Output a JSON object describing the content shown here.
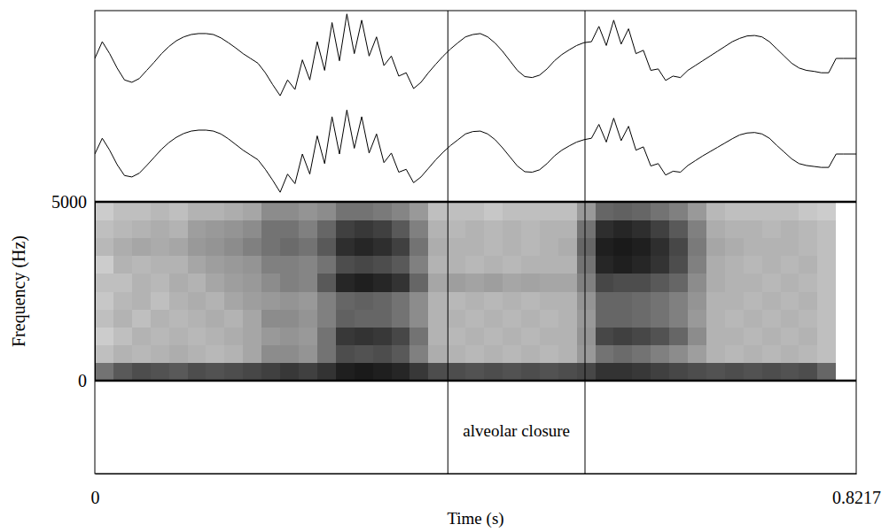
{
  "chart_data": {
    "type": "spectrogram",
    "xlabel": "Time (s)",
    "ylabel": "Frequency (Hz)",
    "xlim": [
      0,
      0.8217
    ],
    "xticks": [
      0,
      0.8217
    ],
    "ylim": [
      0,
      5000
    ],
    "yticks": [
      0,
      5000
    ],
    "waveform": {
      "amplitude_lim": [
        -1,
        1
      ],
      "x": [
        0,
        0.008,
        0.016,
        0.024,
        0.032,
        0.04,
        0.048,
        0.056,
        0.064,
        0.072,
        0.08,
        0.088,
        0.096,
        0.104,
        0.112,
        0.12,
        0.128,
        0.136,
        0.144,
        0.152,
        0.16,
        0.168,
        0.176,
        0.184,
        0.192,
        0.2,
        0.208,
        0.216,
        0.224,
        0.232,
        0.24,
        0.248,
        0.256,
        0.264,
        0.272,
        0.28,
        0.288,
        0.296,
        0.304,
        0.312,
        0.32,
        0.328,
        0.336,
        0.344,
        0.352,
        0.36,
        0.368,
        0.376,
        0.384,
        0.392,
        0.4,
        0.408,
        0.416,
        0.424,
        0.432,
        0.44,
        0.448,
        0.456,
        0.464,
        0.472,
        0.48,
        0.488,
        0.496,
        0.504,
        0.512,
        0.52,
        0.528,
        0.536,
        0.544,
        0.552,
        0.56,
        0.568,
        0.576,
        0.584,
        0.592,
        0.6,
        0.608,
        0.616,
        0.624,
        0.632,
        0.64,
        0.648,
        0.656,
        0.664,
        0.672,
        0.68,
        0.688,
        0.696,
        0.704,
        0.712,
        0.72,
        0.728,
        0.736,
        0.744,
        0.752,
        0.76,
        0.768,
        0.776,
        0.784,
        0.792,
        0.8,
        0.808,
        0.816,
        0.8217
      ],
      "channels": [
        [
          0,
          0.35,
          0.1,
          -0.2,
          -0.45,
          -0.5,
          -0.42,
          -0.25,
          -0.08,
          0.1,
          0.25,
          0.37,
          0.45,
          0.5,
          0.52,
          0.52,
          0.5,
          0.43,
          0.33,
          0.22,
          0.1,
          0,
          -0.1,
          -0.3,
          -0.55,
          -0.78,
          -0.45,
          -0.65,
          -0.03,
          -0.45,
          0.35,
          -0.25,
          0.75,
          -0.05,
          0.93,
          0.1,
          0.8,
          0.05,
          0.45,
          -0.15,
          0.05,
          -0.37,
          -0.3,
          -0.63,
          -0.5,
          -0.3,
          -0.12,
          0.05,
          0.2,
          0.33,
          0.45,
          0.5,
          0.52,
          0.45,
          0.32,
          0.15,
          -0.05,
          -0.25,
          -0.38,
          -0.4,
          -0.35,
          -0.22,
          -0.05,
          0.08,
          0.18,
          0.27,
          0.33,
          0.35,
          0.67,
          0.27,
          0.8,
          0.3,
          0.62,
          0.1,
          0.17,
          -0.25,
          -0.22,
          -0.46,
          -0.37,
          -0.4,
          -0.25,
          -0.15,
          -0.05,
          0.05,
          0.15,
          0.25,
          0.35,
          0.42,
          0.47,
          0.48,
          0.45,
          0.35,
          0.2,
          0.05,
          -0.1,
          -0.2,
          -0.25,
          -0.27,
          -0.3,
          -0.3,
          0,
          0,
          0,
          0
        ],
        [
          0,
          0.33,
          0.08,
          -0.22,
          -0.45,
          -0.48,
          -0.4,
          -0.24,
          -0.07,
          0.1,
          0.24,
          0.35,
          0.43,
          0.48,
          0.5,
          0.5,
          0.48,
          0.42,
          0.32,
          0.2,
          0.08,
          -0.02,
          -0.12,
          -0.32,
          -0.55,
          -0.8,
          -0.42,
          -0.62,
          0,
          -0.42,
          0.38,
          -0.2,
          0.78,
          0,
          0.92,
          0.12,
          0.78,
          0.02,
          0.42,
          -0.18,
          0.02,
          -0.38,
          -0.32,
          -0.6,
          -0.48,
          -0.3,
          -0.12,
          0.04,
          0.18,
          0.3,
          0.42,
          0.47,
          0.48,
          0.42,
          0.3,
          0.13,
          -0.06,
          -0.25,
          -0.37,
          -0.38,
          -0.33,
          -0.2,
          -0.04,
          0.08,
          0.17,
          0.25,
          0.3,
          0.33,
          0.62,
          0.25,
          0.75,
          0.28,
          0.58,
          0.08,
          0.15,
          -0.25,
          -0.2,
          -0.44,
          -0.36,
          -0.38,
          -0.24,
          -0.14,
          -0.04,
          0.05,
          0.14,
          0.23,
          0.32,
          0.4,
          0.44,
          0.45,
          0.42,
          0.33,
          0.18,
          0.04,
          -0.1,
          -0.2,
          -0.24,
          -0.26,
          -0.28,
          -0.28,
          0,
          0,
          0,
          0
        ]
      ]
    },
    "cells": {
      "zlim": [
        0,
        1
      ],
      "x": [
        0,
        0.02,
        0.04,
        0.06,
        0.08,
        0.1,
        0.12,
        0.14,
        0.16,
        0.18,
        0.2,
        0.22,
        0.24,
        0.26,
        0.28,
        0.3,
        0.32,
        0.34,
        0.36,
        0.38,
        0.4,
        0.42,
        0.44,
        0.46,
        0.48,
        0.5,
        0.52,
        0.54,
        0.56,
        0.58,
        0.6,
        0.62,
        0.64,
        0.66,
        0.68,
        0.7,
        0.72,
        0.74,
        0.76,
        0.78,
        0.8,
        0.82
      ],
      "y": [
        0,
        500,
        1000,
        1500,
        2000,
        2500,
        3000,
        3500,
        4000,
        4500,
        5000
      ],
      "values": [
        [
          0.55,
          0.25,
          0.2,
          0.25,
          0.22,
          0.25,
          0.2,
          0.28,
          0.25,
          0.2
        ],
        [
          0.65,
          0.3,
          0.25,
          0.3,
          0.28,
          0.25,
          0.3,
          0.32,
          0.28,
          0.25
        ],
        [
          0.7,
          0.28,
          0.3,
          0.25,
          0.3,
          0.3,
          0.28,
          0.35,
          0.3,
          0.25
        ],
        [
          0.68,
          0.3,
          0.28,
          0.3,
          0.25,
          0.28,
          0.3,
          0.33,
          0.32,
          0.28
        ],
        [
          0.65,
          0.32,
          0.3,
          0.28,
          0.3,
          0.32,
          0.3,
          0.35,
          0.3,
          0.25
        ],
        [
          0.7,
          0.3,
          0.28,
          0.3,
          0.32,
          0.3,
          0.35,
          0.4,
          0.38,
          0.3
        ],
        [
          0.68,
          0.28,
          0.3,
          0.32,
          0.3,
          0.35,
          0.38,
          0.42,
          0.4,
          0.3
        ],
        [
          0.7,
          0.3,
          0.32,
          0.3,
          0.35,
          0.38,
          0.4,
          0.45,
          0.42,
          0.32
        ],
        [
          0.72,
          0.35,
          0.35,
          0.35,
          0.38,
          0.4,
          0.42,
          0.5,
          0.45,
          0.35
        ],
        [
          0.75,
          0.45,
          0.4,
          0.45,
          0.4,
          0.45,
          0.5,
          0.55,
          0.55,
          0.45
        ],
        [
          0.78,
          0.45,
          0.42,
          0.45,
          0.42,
          0.5,
          0.5,
          0.58,
          0.55,
          0.45
        ],
        [
          0.75,
          0.42,
          0.4,
          0.42,
          0.4,
          0.48,
          0.48,
          0.55,
          0.5,
          0.42
        ],
        [
          0.8,
          0.55,
          0.55,
          0.5,
          0.5,
          0.65,
          0.55,
          0.65,
          0.6,
          0.45
        ],
        [
          0.88,
          0.7,
          0.78,
          0.62,
          0.6,
          0.85,
          0.7,
          0.82,
          0.75,
          0.55
        ],
        [
          0.9,
          0.68,
          0.8,
          0.6,
          0.62,
          0.88,
          0.72,
          0.85,
          0.78,
          0.55
        ],
        [
          0.88,
          0.7,
          0.78,
          0.6,
          0.6,
          0.85,
          0.7,
          0.82,
          0.75,
          0.52
        ],
        [
          0.85,
          0.65,
          0.72,
          0.55,
          0.55,
          0.8,
          0.65,
          0.75,
          0.65,
          0.48
        ],
        [
          0.78,
          0.5,
          0.55,
          0.45,
          0.45,
          0.6,
          0.5,
          0.55,
          0.5,
          0.4
        ],
        [
          0.7,
          0.32,
          0.3,
          0.3,
          0.3,
          0.35,
          0.3,
          0.32,
          0.3,
          0.25
        ],
        [
          0.7,
          0.3,
          0.28,
          0.3,
          0.28,
          0.38,
          0.3,
          0.3,
          0.28,
          0.25
        ],
        [
          0.68,
          0.28,
          0.3,
          0.28,
          0.3,
          0.36,
          0.28,
          0.3,
          0.3,
          0.25
        ],
        [
          0.7,
          0.3,
          0.28,
          0.3,
          0.28,
          0.38,
          0.3,
          0.28,
          0.28,
          0.22
        ],
        [
          0.68,
          0.28,
          0.3,
          0.28,
          0.3,
          0.35,
          0.28,
          0.3,
          0.3,
          0.25
        ],
        [
          0.7,
          0.3,
          0.28,
          0.3,
          0.28,
          0.36,
          0.3,
          0.28,
          0.28,
          0.25
        ],
        [
          0.68,
          0.28,
          0.3,
          0.28,
          0.3,
          0.35,
          0.3,
          0.3,
          0.3,
          0.25
        ],
        [
          0.7,
          0.3,
          0.3,
          0.3,
          0.3,
          0.35,
          0.3,
          0.32,
          0.3,
          0.25
        ],
        [
          0.72,
          0.4,
          0.42,
          0.4,
          0.42,
          0.5,
          0.55,
          0.6,
          0.55,
          0.4
        ],
        [
          0.8,
          0.55,
          0.72,
          0.6,
          0.6,
          0.72,
          0.85,
          0.88,
          0.82,
          0.6
        ],
        [
          0.8,
          0.58,
          0.75,
          0.6,
          0.6,
          0.7,
          0.88,
          0.9,
          0.85,
          0.62
        ],
        [
          0.78,
          0.55,
          0.72,
          0.58,
          0.58,
          0.7,
          0.85,
          0.88,
          0.82,
          0.6
        ],
        [
          0.75,
          0.5,
          0.68,
          0.55,
          0.55,
          0.65,
          0.8,
          0.82,
          0.75,
          0.55
        ],
        [
          0.72,
          0.45,
          0.6,
          0.5,
          0.5,
          0.6,
          0.7,
          0.72,
          0.65,
          0.5
        ],
        [
          0.7,
          0.38,
          0.45,
          0.4,
          0.42,
          0.45,
          0.5,
          0.52,
          0.5,
          0.4
        ],
        [
          0.68,
          0.3,
          0.3,
          0.3,
          0.3,
          0.32,
          0.32,
          0.35,
          0.32,
          0.28
        ],
        [
          0.7,
          0.28,
          0.3,
          0.28,
          0.3,
          0.3,
          0.3,
          0.32,
          0.3,
          0.25
        ],
        [
          0.68,
          0.3,
          0.28,
          0.3,
          0.28,
          0.3,
          0.28,
          0.3,
          0.3,
          0.25
        ],
        [
          0.7,
          0.28,
          0.3,
          0.28,
          0.3,
          0.28,
          0.3,
          0.3,
          0.28,
          0.25
        ],
        [
          0.68,
          0.3,
          0.28,
          0.3,
          0.28,
          0.3,
          0.28,
          0.3,
          0.3,
          0.25
        ],
        [
          0.7,
          0.28,
          0.3,
          0.28,
          0.3,
          0.28,
          0.3,
          0.28,
          0.28,
          0.22
        ],
        [
          0.6,
          0.25,
          0.25,
          0.25,
          0.25,
          0.25,
          0.25,
          0.25,
          0.25,
          0.2
        ],
        [
          0,
          0,
          0,
          0,
          0,
          0,
          0,
          0,
          0,
          0
        ]
      ]
    },
    "intervals": [
      {
        "start": 0.381,
        "end": 0.529,
        "label": "alveolar closure"
      }
    ]
  }
}
